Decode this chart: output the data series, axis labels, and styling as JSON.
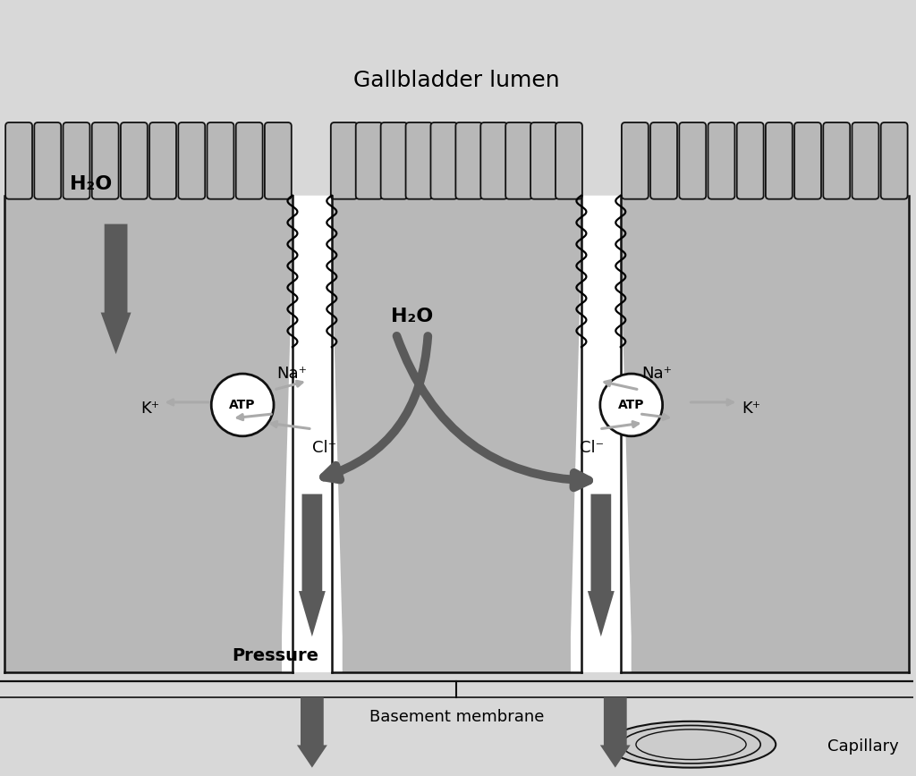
{
  "background_color": "#d8d8d8",
  "cell_fill": "#b8b8b8",
  "white_fill": "#ffffff",
  "dark_arrow": "#585858",
  "light_arrow": "#aaaaaa",
  "line_color": "#111111",
  "title_gallbladder": "Gallbladder lumen",
  "label_h2o_top": "H₂O",
  "label_h2o_mid": "H₂O",
  "label_na_left": "Na⁺",
  "label_na_right": "Na⁺",
  "label_k_left": "K⁺",
  "label_k_right": "K⁺",
  "label_cl_left": "Cl⁻",
  "label_cl_right": "Cl⁻",
  "label_atp_left": "ATP",
  "label_atp_right": "ATP",
  "label_pressure": "Pressure",
  "label_basement": "Basement membrane",
  "label_capillary": "Capillary"
}
